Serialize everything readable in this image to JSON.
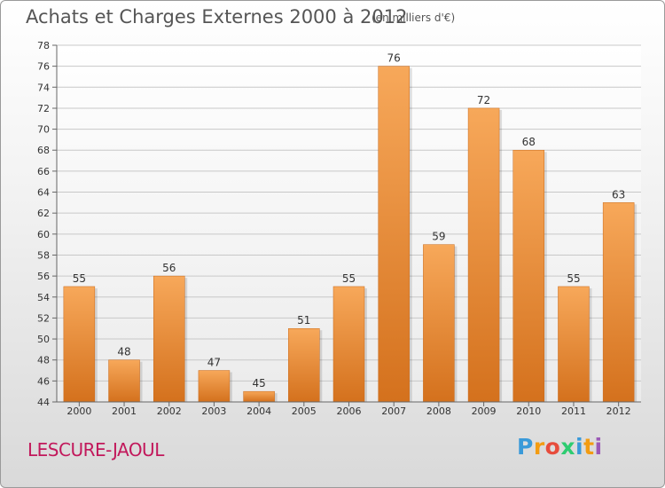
{
  "header": {
    "title": "Achats et Charges Externes 2000 à 2012",
    "subtitle": "(en milliers d'€)"
  },
  "footer": {
    "town": "LESCURE-JAOUL",
    "logo": [
      "P",
      "r",
      "o",
      "x",
      "i",
      "t",
      "i"
    ],
    "logo_colors": [
      "#3a9ad9",
      "#f39c12",
      "#e74c3c",
      "#2ecc71",
      "#3a9ad9",
      "#f39c12",
      "#9b59b6"
    ]
  },
  "colors": {
    "bar_light": "#f7a85a",
    "bar_dark": "#d4711d",
    "grid": "#c8c8c8",
    "axis": "#666666"
  },
  "chart_data": {
    "type": "bar",
    "title": "Achats et Charges Externes 2000 à 2012",
    "subtitle": "(en milliers d'€)",
    "categories": [
      "2000",
      "2001",
      "2002",
      "2003",
      "2004",
      "2005",
      "2006",
      "2007",
      "2008",
      "2009",
      "2010",
      "2011",
      "2012"
    ],
    "values": [
      55,
      48,
      56,
      47,
      45,
      51,
      55,
      76,
      59,
      72,
      68,
      55,
      63
    ],
    "ylim": [
      44,
      78
    ],
    "ytick_step": 2,
    "grid": true,
    "xlabel": "",
    "ylabel": ""
  }
}
